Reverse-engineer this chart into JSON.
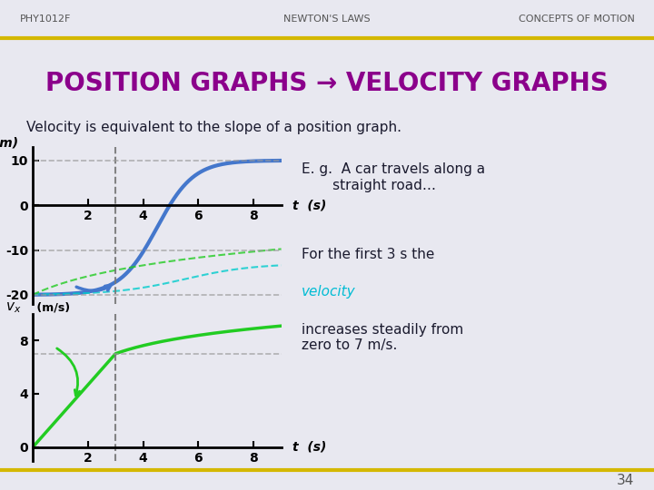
{
  "bg_color": "#e8e8f0",
  "header_left": "PHY1012F",
  "header_center": "NEWTON'S LAWS",
  "header_right": "CONCEPTS OF MOTION",
  "header_line_color": "#d4b800",
  "title": "POSITION GRAPHS → VELOCITY GRAPHS",
  "title_color": "#8b008b",
  "subtitle": "Velocity is equivalent to the slope of a position graph.",
  "subtitle_color": "#1a1a2e",
  "annot1": "E. g.  A car travels along a\n       straight road…",
  "annot2_pre": "For the first 3 s the",
  "annot2_vel": "velocity",
  "annot2_post": "increases steadily from\nzero to 7 m/s.",
  "annot_color": "#1a1a2e",
  "vel_color": "#00bcd4",
  "footer_num": "34",
  "pos_graph": {
    "xlabel": "t  (s)",
    "ylabel": "x (m)",
    "xlim": [
      0,
      9
    ],
    "ylim": [
      -22,
      13
    ],
    "yticks": [
      10,
      0,
      -10,
      -20
    ],
    "xticks": [
      2,
      4,
      6,
      8
    ],
    "grid_color": "#999999",
    "curve_color": "#4477cc",
    "curve_lw": 3,
    "dashed_color1": "#00cccc",
    "dashed_color2": "#22cc22",
    "vline_x": 3
  },
  "vel_graph": {
    "xlabel": "t  (s)",
    "ylabel": "vx (m/s)",
    "xlim": [
      0,
      9
    ],
    "ylim": [
      -1,
      10
    ],
    "yticks": [
      0,
      4,
      8
    ],
    "xticks": [
      2,
      4,
      6,
      8
    ],
    "grid_color": "#999999",
    "line_color": "#22cc22",
    "line_lw": 2.5,
    "vline_x": 3
  }
}
